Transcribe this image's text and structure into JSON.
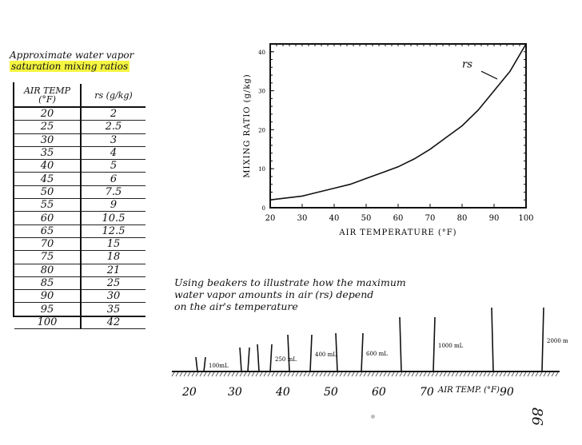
{
  "table": {
    "title_line1": "Approximate water vapor",
    "title_line2": "saturation mixing ratios",
    "col1_header": "AIR TEMP (°F)",
    "col2_header": "rs (g/kg)",
    "rows": [
      [
        "20",
        "2"
      ],
      [
        "25",
        "2.5"
      ],
      [
        "30",
        "3"
      ],
      [
        "35",
        "4"
      ],
      [
        "40",
        "5"
      ],
      [
        "45",
        "6"
      ],
      [
        "50",
        "7.5"
      ],
      [
        "55",
        "9"
      ],
      [
        "60",
        "10.5"
      ],
      [
        "65",
        "12.5"
      ],
      [
        "70",
        "15"
      ],
      [
        "75",
        "18"
      ],
      [
        "80",
        "21"
      ],
      [
        "85",
        "25"
      ],
      [
        "90",
        "30"
      ],
      [
        "95",
        "35"
      ],
      [
        "100",
        "42"
      ]
    ]
  },
  "chart_data": {
    "type": "line",
    "xlabel": "AIR TEMPERATURE (°F)",
    "ylabel": "MIXING RATIO (g/kg)",
    "x_ticks": [
      "20",
      "30",
      "40",
      "50",
      "60",
      "70",
      "80",
      "90",
      "100"
    ],
    "y_ticks": [
      "0",
      "10",
      "20",
      "30",
      "40"
    ],
    "xlim": [
      20,
      100
    ],
    "ylim": [
      0,
      42
    ],
    "series": [
      {
        "name": "rs",
        "x": [
          20,
          25,
          30,
          35,
          40,
          45,
          50,
          55,
          60,
          65,
          70,
          75,
          80,
          85,
          90,
          95,
          100
        ],
        "values": [
          2,
          2.5,
          3,
          4,
          5,
          6,
          7.5,
          9,
          10.5,
          12.5,
          15,
          18,
          21,
          25,
          30,
          35,
          42
        ]
      }
    ],
    "annotation": "rs"
  },
  "beakers": {
    "caption_line1": "Using beakers to illustrate how the maximum",
    "caption_line2": "water vapor amounts in air (rs) depend",
    "caption_line3": "on the air's temperature",
    "axis_label": "AIR TEMP. (°F)",
    "temps": [
      "20",
      "30",
      "40",
      "50",
      "60",
      "70",
      "90"
    ],
    "items": [
      {
        "volume": "100mL"
      },
      {
        "volume": ""
      },
      {
        "volume": "250 mL"
      },
      {
        "volume": "400 mL"
      },
      {
        "volume": "600 mL"
      },
      {
        "volume": "1000 mL"
      },
      {
        "volume": "2000 mL"
      }
    ]
  },
  "page_number": "86"
}
